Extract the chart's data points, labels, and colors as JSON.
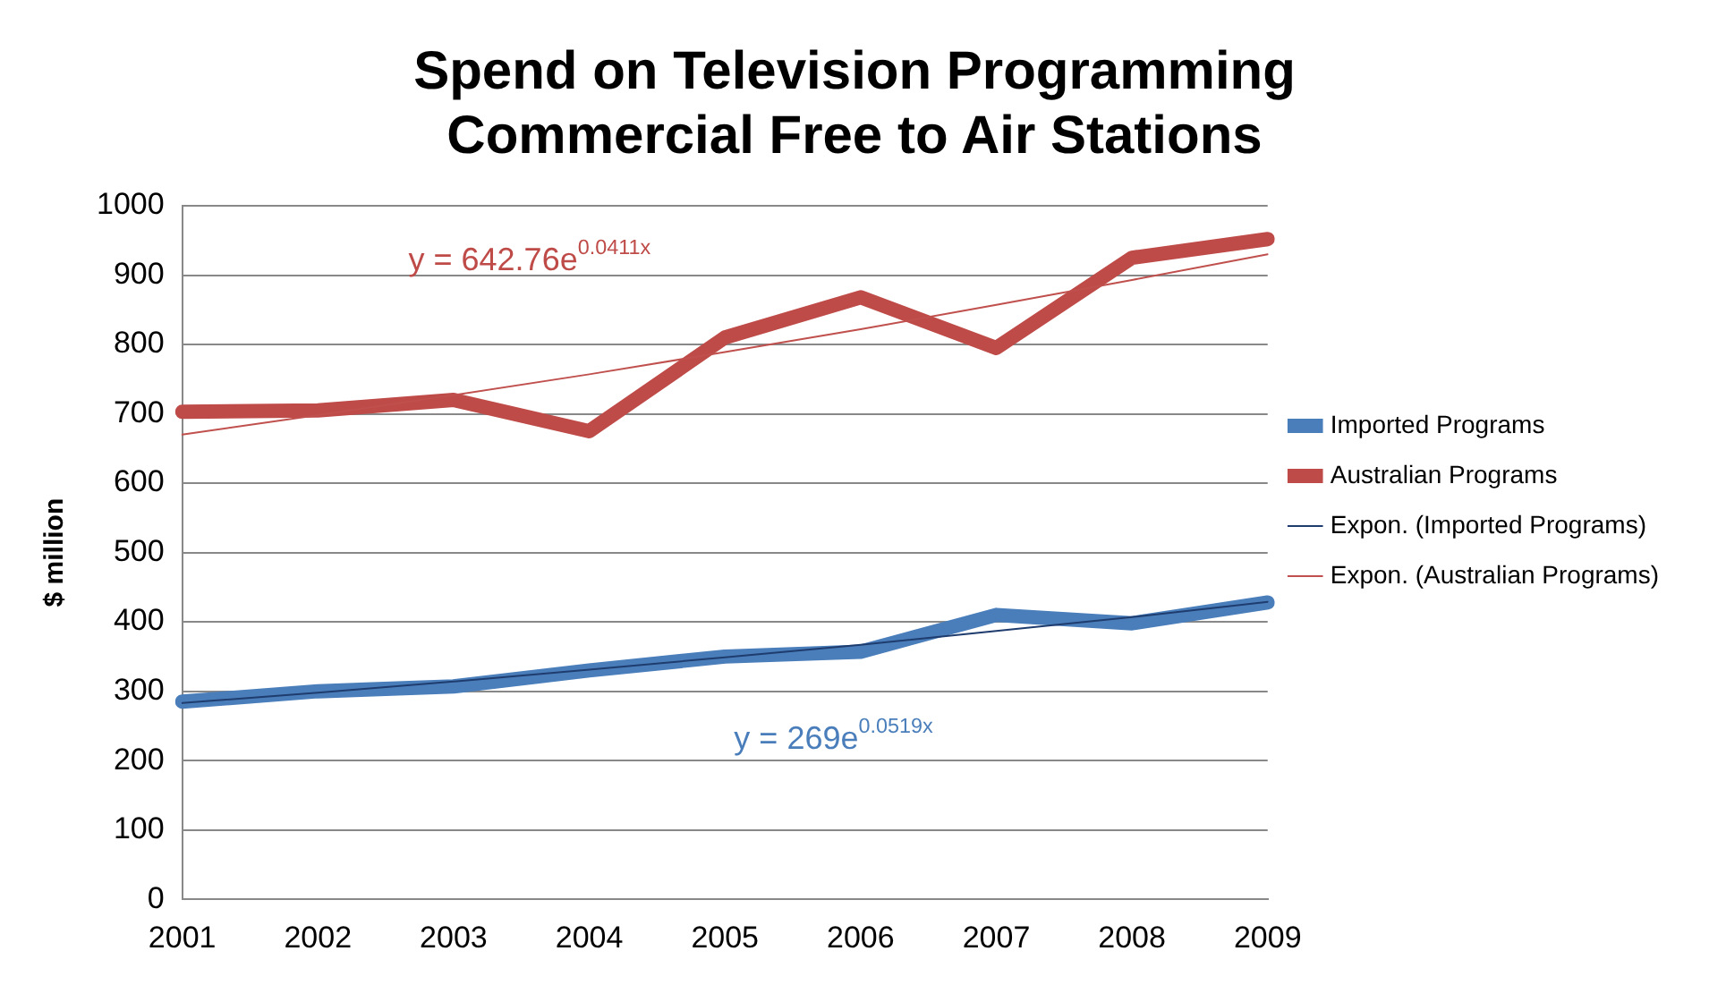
{
  "chart_data": {
    "type": "line",
    "title": "Spend on Television Programming\nCommercial Free to Air Stations",
    "ylabel": "$ million",
    "categories": [
      "2001",
      "2002",
      "2003",
      "2004",
      "2005",
      "2006",
      "2007",
      "2008",
      "2009"
    ],
    "series": [
      {
        "name": "Imported Programs",
        "color": "#4a7ebb",
        "values": [
          285,
          300,
          307,
          330,
          350,
          357,
          410,
          398,
          428
        ]
      },
      {
        "name": "Australian Programs",
        "color": "#be4b48",
        "values": [
          703,
          705,
          720,
          675,
          810,
          868,
          795,
          925,
          952
        ]
      },
      {
        "name": "Expon. (Imported Programs)",
        "color": "#1f3c6e",
        "values": [
          283,
          298,
          314,
          331,
          349,
          367,
          387,
          407,
          429
        ]
      },
      {
        "name": "Expon. (Australian Programs)",
        "color": "#c0504d",
        "values": [
          670,
          698,
          727,
          757,
          789,
          822,
          857,
          893,
          930
        ]
      }
    ],
    "annotations": [
      "y = 642.76e$^{0.0411x}$",
      "y = 269e$^{0.0519x}$"
    ],
    "ylim": [
      0,
      1000
    ],
    "yticks": [
      0,
      100,
      200,
      300,
      400,
      500,
      600,
      700,
      800,
      900,
      1000
    ],
    "grid": "y",
    "legend": "right",
    "marker": "none",
    "line_style": "solid"
  }
}
